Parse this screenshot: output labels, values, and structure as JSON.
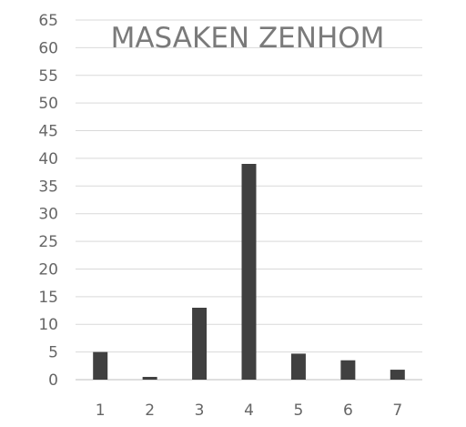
{
  "chart_data": {
    "type": "bar",
    "title": "MASAKEN ZENHOM",
    "xlabel": "",
    "ylabel": "",
    "categories": [
      "1",
      "2",
      "3",
      "4",
      "5",
      "6",
      "7"
    ],
    "values": [
      5,
      0.5,
      13,
      39,
      4.7,
      3.5,
      1.8
    ],
    "ylim": [
      0,
      65
    ],
    "yticks": [
      0,
      5,
      10,
      15,
      20,
      25,
      30,
      35,
      40,
      45,
      50,
      55,
      60,
      65
    ],
    "grid": true,
    "legend": "none",
    "bar_color": "#404040",
    "grid_color": "#d9d9d9"
  }
}
